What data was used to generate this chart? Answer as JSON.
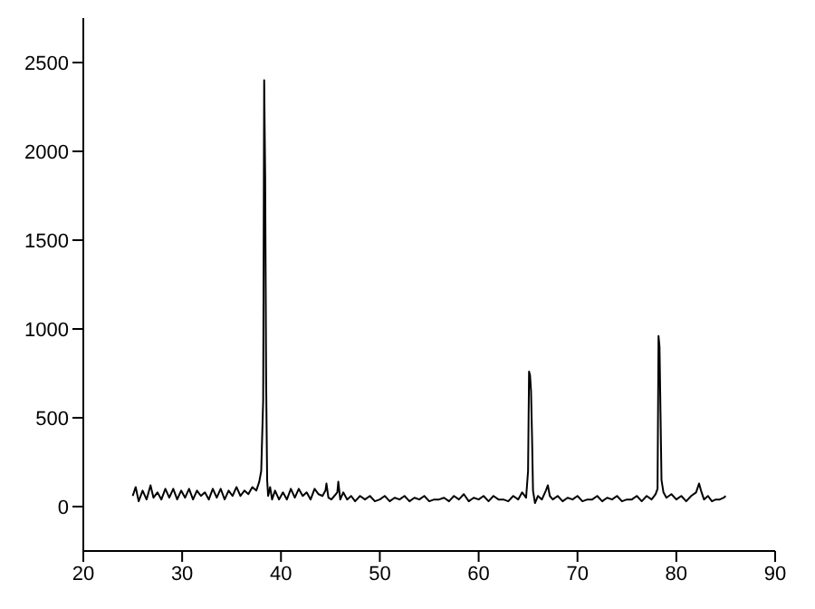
{
  "chart_data": {
    "type": "line",
    "xlim": [
      20,
      90
    ],
    "xticks": [
      20,
      30,
      40,
      50,
      60,
      70,
      80,
      90
    ],
    "ylim": [
      -250,
      2750
    ],
    "yticks": [
      0,
      500,
      1000,
      1500,
      2000,
      2500
    ],
    "marker": "none",
    "line_style": "solid",
    "series": [
      {
        "color": "#000000",
        "x": [
          25,
          25.3,
          25.6,
          26,
          26.4,
          26.8,
          27.1,
          27.5,
          27.9,
          28.3,
          28.7,
          29.1,
          29.5,
          29.9,
          30.3,
          30.7,
          31.1,
          31.5,
          31.9,
          32.3,
          32.7,
          33.1,
          33.5,
          33.9,
          34.3,
          34.7,
          35.1,
          35.5,
          35.9,
          36.3,
          36.7,
          37.1,
          37.5,
          37.8,
          38.0,
          38.2,
          38.3,
          38.4,
          38.5,
          38.6,
          38.7,
          38.9,
          39.1,
          39.4,
          39.8,
          40.2,
          40.6,
          41,
          41.4,
          41.8,
          42.2,
          42.6,
          43,
          43.4,
          43.8,
          44.2,
          44.5,
          44.6,
          44.8,
          45.1,
          45.4,
          45.7,
          45.8,
          46,
          46.3,
          46.7,
          47.1,
          47.5,
          48,
          48.5,
          49,
          49.5,
          50,
          50.5,
          51,
          51.5,
          52,
          52.5,
          53,
          53.5,
          54,
          54.5,
          55,
          55.5,
          56,
          56.5,
          57,
          57.5,
          58,
          58.5,
          59,
          59.5,
          60,
          60.5,
          61,
          61.5,
          62,
          62.5,
          63,
          63.5,
          64,
          64.4,
          64.8,
          65.0,
          65.1,
          65.2,
          65.3,
          65.4,
          65.5,
          65.7,
          66,
          66.4,
          66.8,
          67.0,
          67.2,
          67.5,
          68,
          68.5,
          69,
          69.5,
          70,
          70.5,
          71,
          71.5,
          72,
          72.5,
          73,
          73.5,
          74,
          74.5,
          75,
          75.5,
          76,
          76.5,
          77,
          77.5,
          77.9,
          78.1,
          78.2,
          78.3,
          78.4,
          78.5,
          78.7,
          79,
          79.5,
          80,
          80.5,
          81,
          81.5,
          82,
          82.3,
          82.5,
          82.8,
          83.2,
          83.6,
          84,
          84.4,
          84.8,
          85
        ],
        "values": [
          60,
          110,
          30,
          90,
          40,
          120,
          50,
          80,
          40,
          100,
          50,
          100,
          40,
          90,
          50,
          100,
          40,
          90,
          60,
          80,
          40,
          100,
          50,
          100,
          40,
          90,
          60,
          110,
          60,
          90,
          70,
          110,
          90,
          140,
          200,
          600,
          2400,
          1860,
          700,
          150,
          60,
          110,
          40,
          90,
          40,
          80,
          40,
          100,
          50,
          100,
          60,
          80,
          40,
          100,
          70,
          60,
          90,
          130,
          50,
          40,
          60,
          80,
          140,
          40,
          80,
          40,
          60,
          30,
          60,
          40,
          60,
          30,
          40,
          60,
          30,
          50,
          40,
          60,
          30,
          50,
          40,
          60,
          30,
          40,
          40,
          50,
          30,
          60,
          40,
          70,
          30,
          50,
          40,
          60,
          30,
          60,
          40,
          40,
          30,
          60,
          40,
          80,
          50,
          200,
          760,
          740,
          650,
          400,
          90,
          20,
          60,
          40,
          90,
          120,
          60,
          40,
          60,
          30,
          50,
          40,
          60,
          30,
          40,
          40,
          60,
          30,
          50,
          40,
          60,
          30,
          40,
          40,
          60,
          30,
          60,
          40,
          70,
          100,
          960,
          900,
          530,
          150,
          80,
          50,
          70,
          40,
          60,
          30,
          60,
          80,
          130,
          90,
          40,
          60,
          30,
          40,
          40,
          50,
          60
        ]
      }
    ]
  }
}
